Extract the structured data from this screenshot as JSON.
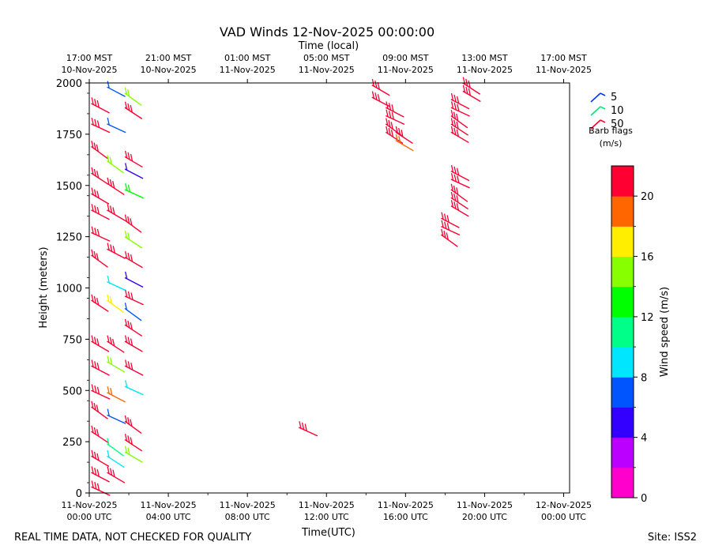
{
  "chart_data": {
    "type": "wind-barb",
    "title": "VAD Winds 12-Nov-2025 00:00:00",
    "top_axis_label": "Time (local)",
    "xlabel": "Time(UTC)",
    "ylabel": "Height (meters)",
    "x_range_utc_hours": [
      0,
      24.3
    ],
    "ylim": [
      0,
      2000
    ],
    "y_ticks": [
      0,
      250,
      500,
      750,
      1000,
      1250,
      1500,
      1750,
      2000
    ],
    "x_ticks_utc": [
      {
        "hour": 0,
        "line1": "11-Nov-2025",
        "line2": "00:00 UTC"
      },
      {
        "hour": 4,
        "line1": "11-Nov-2025",
        "line2": "04:00 UTC"
      },
      {
        "hour": 8,
        "line1": "11-Nov-2025",
        "line2": "08:00 UTC"
      },
      {
        "hour": 12,
        "line1": "11-Nov-2025",
        "line2": "12:00 UTC"
      },
      {
        "hour": 16,
        "line1": "11-Nov-2025",
        "line2": "16:00 UTC"
      },
      {
        "hour": 20,
        "line1": "11-Nov-2025",
        "line2": "20:00 UTC"
      },
      {
        "hour": 24,
        "line1": "12-Nov-2025",
        "line2": "00:00 UTC"
      }
    ],
    "x_ticks_local": [
      {
        "hour": 0,
        "line1": "17:00 MST",
        "line2": "10-Nov-2025"
      },
      {
        "hour": 4,
        "line1": "21:00 MST",
        "line2": "10-Nov-2025"
      },
      {
        "hour": 8,
        "line1": "01:00 MST",
        "line2": "11-Nov-2025"
      },
      {
        "hour": 12,
        "line1": "05:00 MST",
        "line2": "11-Nov-2025"
      },
      {
        "hour": 16,
        "line1": "09:00 MST",
        "line2": "11-Nov-2025"
      },
      {
        "hour": 20,
        "line1": "13:00 MST",
        "line2": "11-Nov-2025"
      },
      {
        "hour": 24,
        "line1": "17:00 MST",
        "line2": "11-Nov-2025"
      }
    ],
    "barb_legend": {
      "title_line1": "Barb flags",
      "title_line2": "(m/s)",
      "entries": [
        {
          "label": "5",
          "color": "#0033ff"
        },
        {
          "label": "10",
          "color": "#00e67a"
        },
        {
          "label": "50",
          "color": "#ff0033"
        }
      ]
    },
    "colorbar": {
      "label": "Wind speed (m/s)",
      "min": 0,
      "max": 22,
      "ticks": [
        0,
        4,
        8,
        12,
        16,
        20
      ],
      "colors": [
        "#ff00cc",
        "#bb00ff",
        "#3300ff",
        "#0055ff",
        "#00e6ff",
        "#00ff88",
        "#00ff00",
        "#88ff00",
        "#ffee00",
        "#ff6600",
        "#ff0033"
      ]
    },
    "barbs": [
      {
        "t": 0.1,
        "h": 30,
        "speed": 22
      },
      {
        "t": 0.1,
        "h": 100,
        "speed": 22
      },
      {
        "t": 0.1,
        "h": 180,
        "speed": 22
      },
      {
        "t": 0.1,
        "h": 300,
        "speed": 22
      },
      {
        "t": 0.1,
        "h": 420,
        "speed": 22
      },
      {
        "t": 0.1,
        "h": 500,
        "speed": 21
      },
      {
        "t": 0.1,
        "h": 620,
        "speed": 22
      },
      {
        "t": 0.1,
        "h": 740,
        "speed": 22
      },
      {
        "t": 0.1,
        "h": 940,
        "speed": 22
      },
      {
        "t": 0.1,
        "h": 1160,
        "speed": 22
      },
      {
        "t": 0.1,
        "h": 1270,
        "speed": 22
      },
      {
        "t": 0.1,
        "h": 1380,
        "speed": 22
      },
      {
        "t": 0.1,
        "h": 1460,
        "speed": 22
      },
      {
        "t": 0.1,
        "h": 1560,
        "speed": 22
      },
      {
        "t": 0.1,
        "h": 1690,
        "speed": 22
      },
      {
        "t": 0.1,
        "h": 1800,
        "speed": 22
      },
      {
        "t": 0.1,
        "h": 1900,
        "speed": 22
      },
      {
        "t": 0.9,
        "h": 100,
        "speed": 22
      },
      {
        "t": 0.9,
        "h": 180,
        "speed": 9
      },
      {
        "t": 0.9,
        "h": 240,
        "speed": 11
      },
      {
        "t": 0.9,
        "h": 380,
        "speed": 7
      },
      {
        "t": 0.9,
        "h": 490,
        "speed": 19
      },
      {
        "t": 0.9,
        "h": 640,
        "speed": 14
      },
      {
        "t": 0.9,
        "h": 740,
        "speed": 22
      },
      {
        "t": 0.9,
        "h": 940,
        "speed": 17
      },
      {
        "t": 0.9,
        "h": 1030,
        "speed": 9
      },
      {
        "t": 0.9,
        "h": 1190,
        "speed": 22
      },
      {
        "t": 0.9,
        "h": 1380,
        "speed": 22
      },
      {
        "t": 0.9,
        "h": 1510,
        "speed": 22
      },
      {
        "t": 0.9,
        "h": 1620,
        "speed": 15
      },
      {
        "t": 0.9,
        "h": 1800,
        "speed": 7
      },
      {
        "t": 0.9,
        "h": 1980,
        "speed": 7
      },
      {
        "t": 1.8,
        "h": 200,
        "speed": 15
      },
      {
        "t": 1.8,
        "h": 260,
        "speed": 22
      },
      {
        "t": 1.8,
        "h": 350,
        "speed": 22
      },
      {
        "t": 1.8,
        "h": 520,
        "speed": 9
      },
      {
        "t": 1.8,
        "h": 620,
        "speed": 22
      },
      {
        "t": 1.8,
        "h": 740,
        "speed": 22
      },
      {
        "t": 1.8,
        "h": 820,
        "speed": 22
      },
      {
        "t": 1.8,
        "h": 900,
        "speed": 7
      },
      {
        "t": 1.8,
        "h": 960,
        "speed": 22
      },
      {
        "t": 1.8,
        "h": 1050,
        "speed": 4
      },
      {
        "t": 1.8,
        "h": 1150,
        "speed": 22
      },
      {
        "t": 1.8,
        "h": 1250,
        "speed": 15
      },
      {
        "t": 1.8,
        "h": 1330,
        "speed": 22
      },
      {
        "t": 1.8,
        "h": 1480,
        "speed": 13
      },
      {
        "t": 1.8,
        "h": 1580,
        "speed": 4
      },
      {
        "t": 1.8,
        "h": 1640,
        "speed": 22
      },
      {
        "t": 1.8,
        "h": 1880,
        "speed": 22
      },
      {
        "t": 1.8,
        "h": 1950,
        "speed": 15
      },
      {
        "t": 10.6,
        "h": 320,
        "speed": 22
      },
      {
        "t": 14.3,
        "h": 1930,
        "speed": 22
      },
      {
        "t": 14.3,
        "h": 1990,
        "speed": 22
      },
      {
        "t": 15.0,
        "h": 1760,
        "speed": 22
      },
      {
        "t": 15.0,
        "h": 1800,
        "speed": 22
      },
      {
        "t": 15.0,
        "h": 1840,
        "speed": 22
      },
      {
        "t": 15.0,
        "h": 1880,
        "speed": 22
      },
      {
        "t": 15.5,
        "h": 1720,
        "speed": 19
      },
      {
        "t": 15.5,
        "h": 1760,
        "speed": 22
      },
      {
        "t": 17.8,
        "h": 1260,
        "speed": 22
      },
      {
        "t": 17.8,
        "h": 1300,
        "speed": 22
      },
      {
        "t": 17.8,
        "h": 1340,
        "speed": 22
      },
      {
        "t": 18.3,
        "h": 1400,
        "speed": 22
      },
      {
        "t": 18.3,
        "h": 1440,
        "speed": 22
      },
      {
        "t": 18.3,
        "h": 1480,
        "speed": 22
      },
      {
        "t": 18.3,
        "h": 1530,
        "speed": 22
      },
      {
        "t": 18.3,
        "h": 1570,
        "speed": 22
      },
      {
        "t": 18.3,
        "h": 1760,
        "speed": 22
      },
      {
        "t": 18.3,
        "h": 1800,
        "speed": 22
      },
      {
        "t": 18.3,
        "h": 1840,
        "speed": 22
      },
      {
        "t": 18.3,
        "h": 1880,
        "speed": 22
      },
      {
        "t": 18.3,
        "h": 1920,
        "speed": 22
      },
      {
        "t": 18.9,
        "h": 1960,
        "speed": 22
      },
      {
        "t": 18.9,
        "h": 2000,
        "speed": 22
      }
    ]
  },
  "footer": {
    "left": "REAL TIME DATA, NOT CHECKED FOR QUALITY",
    "right": "Site: ISS2"
  }
}
